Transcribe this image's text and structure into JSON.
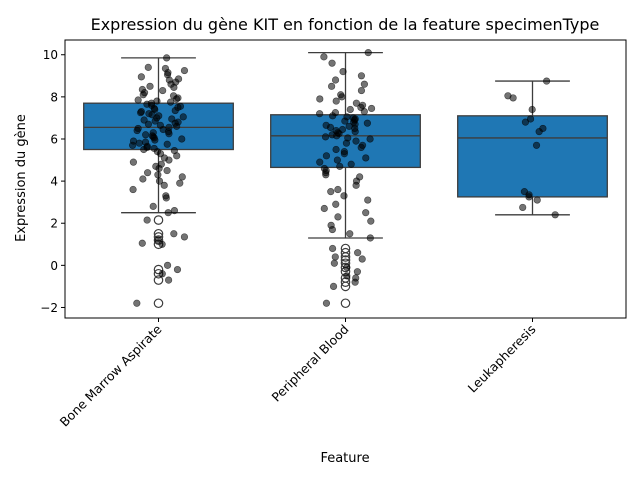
{
  "chart_data": {
    "type": "box",
    "title": "Expression du gène KIT en fonction de la feature specimenType",
    "xlabel": "Feature",
    "ylabel": "Expression du gène",
    "categories": [
      "Bone Marrow Aspirate",
      "Peripheral Blood",
      "Leukapheresis"
    ],
    "ylim": [
      -2.5,
      10.7
    ],
    "yticks": [
      -2,
      0,
      2,
      4,
      6,
      8,
      10
    ],
    "grid": false,
    "box_color": "#1f77b4",
    "boxes": [
      {
        "category": "Bone Marrow Aspirate",
        "whisker_low": 2.5,
        "q1": 5.5,
        "median": 6.55,
        "q3": 7.7,
        "whisker_high": 9.85,
        "outliers": [
          2.15,
          1.5,
          1.35,
          1.2,
          1.0,
          -0.2,
          -0.4,
          -0.7,
          -1.8
        ],
        "points": [
          9.85,
          9.4,
          9.35,
          9.25,
          9.15,
          9.05,
          8.95,
          8.85,
          8.8,
          8.7,
          8.6,
          8.5,
          8.45,
          8.35,
          8.3,
          8.2,
          8.1,
          8.05,
          7.95,
          7.9,
          7.85,
          7.8,
          7.75,
          7.7,
          7.65,
          7.6,
          7.55,
          7.5,
          7.45,
          7.4,
          7.35,
          7.3,
          7.25,
          7.2,
          7.15,
          7.1,
          7.05,
          7.0,
          6.95,
          6.9,
          6.85,
          6.8,
          6.75,
          6.7,
          6.65,
          6.6,
          6.55,
          6.5,
          6.45,
          6.4,
          6.35,
          6.3,
          6.25,
          6.2,
          6.15,
          6.1,
          6.05,
          6.0,
          5.95,
          5.9,
          5.85,
          5.8,
          5.75,
          5.7,
          5.65,
          5.6,
          5.55,
          5.5,
          5.45,
          5.4,
          5.3,
          5.2,
          5.1,
          5.0,
          4.9,
          4.8,
          4.7,
          4.6,
          4.5,
          4.4,
          4.3,
          4.2,
          4.1,
          4.0,
          3.9,
          3.8,
          3.6,
          3.3,
          3.2,
          2.8,
          2.6,
          2.5,
          2.15,
          1.5,
          1.35,
          1.2,
          1.05,
          1.0,
          0.0,
          -0.2,
          -0.4,
          -0.7,
          -1.8
        ]
      },
      {
        "category": "Peripheral Blood",
        "whisker_low": 1.3,
        "q1": 4.65,
        "median": 6.15,
        "q3": 7.15,
        "whisker_high": 10.1,
        "outliers": [
          0.8,
          0.6,
          0.4,
          0.25,
          0.1,
          -0.1,
          -0.3,
          -0.6,
          -0.8,
          -1.0,
          -1.8
        ],
        "points": [
          10.1,
          9.9,
          9.6,
          9.2,
          9.0,
          8.8,
          8.6,
          8.5,
          8.3,
          8.1,
          8.0,
          7.9,
          7.8,
          7.7,
          7.6,
          7.5,
          7.45,
          7.4,
          7.3,
          7.25,
          7.2,
          7.1,
          7.05,
          7.0,
          6.95,
          6.9,
          6.85,
          6.8,
          6.75,
          6.7,
          6.65,
          6.6,
          6.55,
          6.5,
          6.45,
          6.4,
          6.35,
          6.3,
          6.25,
          6.2,
          6.15,
          6.1,
          6.05,
          6.0,
          5.9,
          5.8,
          5.7,
          5.6,
          5.5,
          5.4,
          5.3,
          5.2,
          5.1,
          5.0,
          4.9,
          4.8,
          4.7,
          4.6,
          4.5,
          4.4,
          4.3,
          4.2,
          4.0,
          3.8,
          3.6,
          3.5,
          3.3,
          3.1,
          2.9,
          2.7,
          2.5,
          2.3,
          2.1,
          1.9,
          1.7,
          1.5,
          1.3,
          0.8,
          0.6,
          0.4,
          0.3,
          0.1,
          -0.1,
          -0.3,
          -0.5,
          -0.6,
          -0.8,
          -1.0,
          -1.8
        ]
      },
      {
        "category": "Leukapheresis",
        "whisker_low": 2.4,
        "q1": 3.25,
        "median": 6.05,
        "q3": 7.1,
        "whisker_high": 8.75,
        "outliers": [],
        "points": [
          8.75,
          8.05,
          7.95,
          7.4,
          6.95,
          6.8,
          6.5,
          6.35,
          5.7,
          3.5,
          3.35,
          3.25,
          3.1,
          2.75,
          2.4
        ]
      }
    ]
  }
}
